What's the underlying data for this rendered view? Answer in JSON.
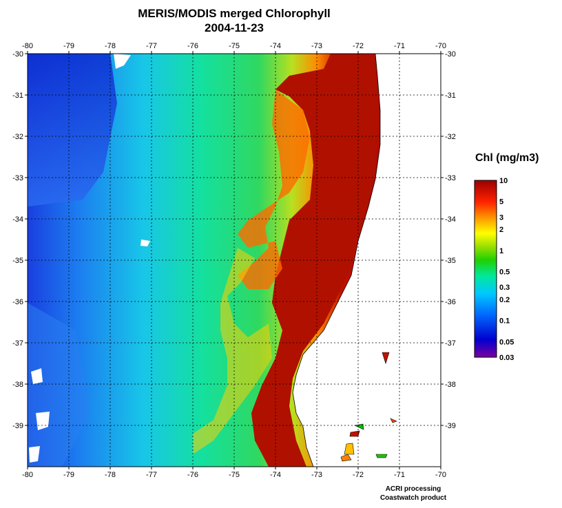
{
  "title": "MERIS/MODIS merged Chlorophyll",
  "date": "2004-11-23",
  "map": {
    "lon_range": [
      -80,
      -70
    ],
    "lat_range": [
      -40,
      -30
    ],
    "lon_ticks": [
      "-80",
      "-79",
      "-78",
      "-77",
      "-76",
      "-75",
      "-74",
      "-73",
      "-72",
      "-71",
      "-70"
    ],
    "lat_ticks": [
      "-30",
      "-31",
      "-32",
      "-33",
      "-34",
      "-35",
      "-36",
      "-37",
      "-38",
      "-39"
    ],
    "grid": true,
    "land_color": "#ffffff"
  },
  "legend": {
    "title": "Chl (mg/m3)",
    "tick_labels": [
      "10",
      "5",
      "3",
      "2",
      "1",
      "0.5",
      "0.3",
      "0.2",
      "0.1",
      "0.05",
      "0.03"
    ],
    "scale": "log",
    "colors": [
      "#7a00a0",
      "#0000d0",
      "#0070ff",
      "#00c8ff",
      "#00e89a",
      "#20d000",
      "#a0e000",
      "#ffff00",
      "#ffa000",
      "#ff2000",
      "#9a0000"
    ]
  },
  "credits": [
    "ACRI processing",
    "Coastwatch product"
  ]
}
